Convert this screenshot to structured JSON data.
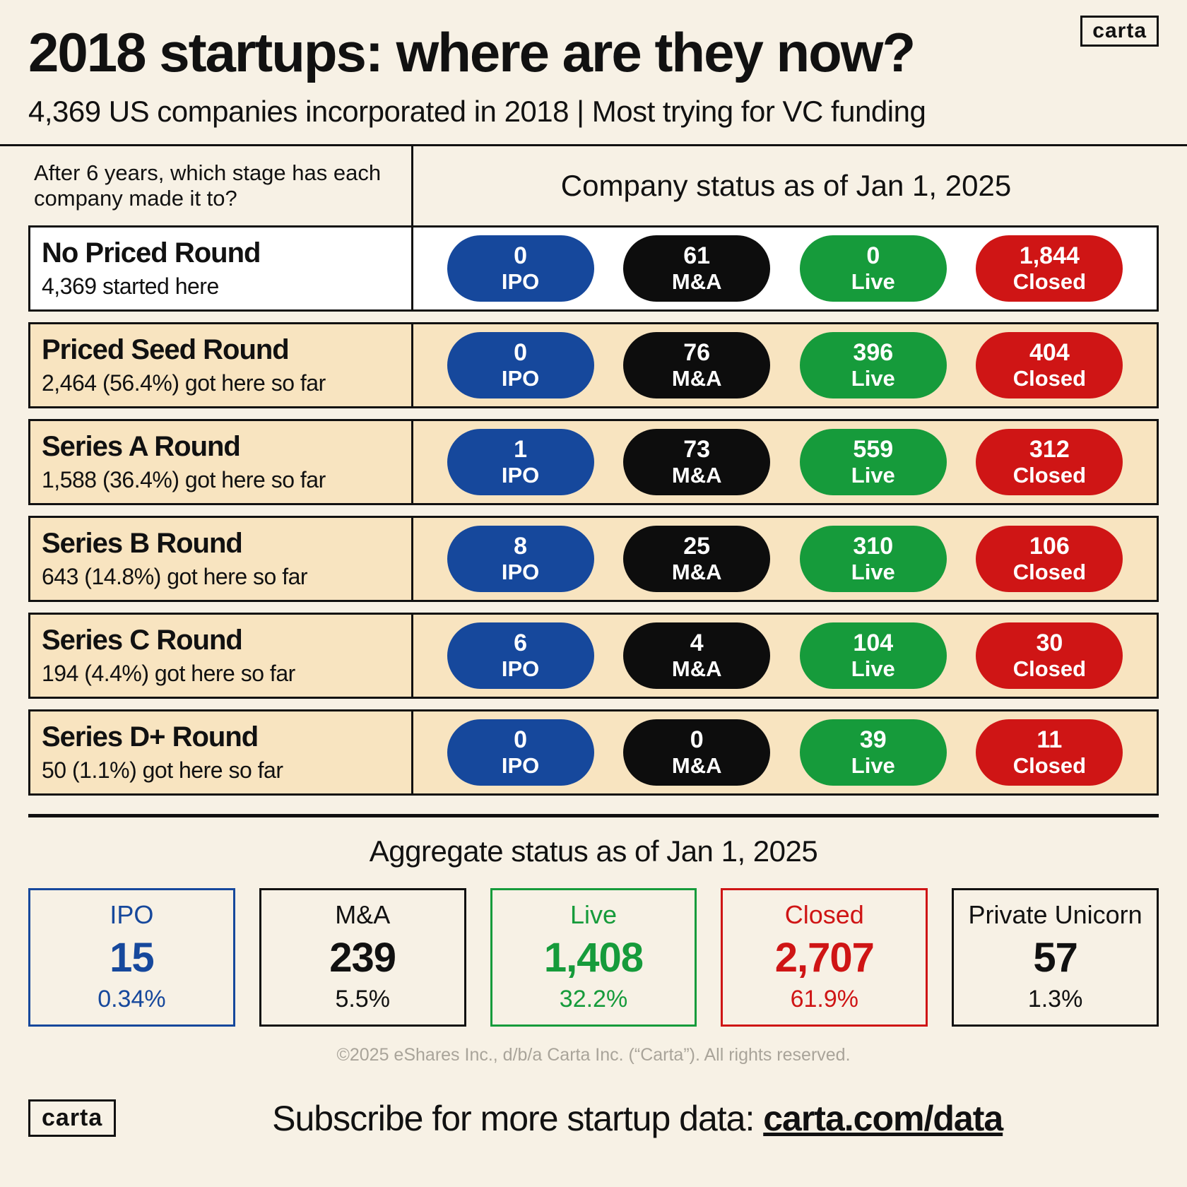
{
  "brand": {
    "logo_top": "carta",
    "logo_bottom": "carta"
  },
  "header": {
    "title": "2018 startups: where are they now?",
    "subtitle": "4,369 US companies incorporated in 2018 | Most trying for VC funding"
  },
  "table": {
    "left_header": "After 6 years, which stage has each company made it to?",
    "right_header": "Company status as of Jan 1, 2025",
    "rows": [
      {
        "title": "No Priced Round",
        "subtitle": "4,369 started here",
        "pills": [
          {
            "value": "0",
            "label": "IPO"
          },
          {
            "value": "61",
            "label": "M&A"
          },
          {
            "value": "0",
            "label": "Live"
          },
          {
            "value": "1,844",
            "label": "Closed"
          }
        ]
      },
      {
        "title": "Priced Seed Round",
        "subtitle": "2,464 (56.4%) got here so far",
        "pills": [
          {
            "value": "0",
            "label": "IPO"
          },
          {
            "value": "76",
            "label": "M&A"
          },
          {
            "value": "396",
            "label": "Live"
          },
          {
            "value": "404",
            "label": "Closed"
          }
        ]
      },
      {
        "title": "Series A Round",
        "subtitle": "1,588 (36.4%) got here so far",
        "pills": [
          {
            "value": "1",
            "label": "IPO"
          },
          {
            "value": "73",
            "label": "M&A"
          },
          {
            "value": "559",
            "label": "Live"
          },
          {
            "value": "312",
            "label": "Closed"
          }
        ]
      },
      {
        "title": "Series B Round",
        "subtitle": "643 (14.8%) got here so far",
        "pills": [
          {
            "value": "8",
            "label": "IPO"
          },
          {
            "value": "25",
            "label": "M&A"
          },
          {
            "value": "310",
            "label": "Live"
          },
          {
            "value": "106",
            "label": "Closed"
          }
        ]
      },
      {
        "title": "Series C Round",
        "subtitle": "194 (4.4%) got here so far",
        "pills": [
          {
            "value": "6",
            "label": "IPO"
          },
          {
            "value": "4",
            "label": "M&A"
          },
          {
            "value": "104",
            "label": "Live"
          },
          {
            "value": "30",
            "label": "Closed"
          }
        ]
      },
      {
        "title": "Series D+ Round",
        "subtitle": "50 (1.1%) got here so far",
        "pills": [
          {
            "value": "0",
            "label": "IPO"
          },
          {
            "value": "0",
            "label": "M&A"
          },
          {
            "value": "39",
            "label": "Live"
          },
          {
            "value": "11",
            "label": "Closed"
          }
        ]
      }
    ]
  },
  "aggregate": {
    "title": "Aggregate status as of Jan 1, 2025",
    "cards": [
      {
        "label": "IPO",
        "value": "15",
        "pct": "0.34%"
      },
      {
        "label": "M&A",
        "value": "239",
        "pct": "5.5%"
      },
      {
        "label": "Live",
        "value": "1,408",
        "pct": "32.2%"
      },
      {
        "label": "Closed",
        "value": "2,707",
        "pct": "61.9%"
      },
      {
        "label": "Private Unicorn",
        "value": "57",
        "pct": "1.3%"
      }
    ]
  },
  "footer": {
    "copyright": "©2025 eShares Inc., d/b/a Carta Inc. (“Carta”). All rights reserved.",
    "subscribe_prefix": "Subscribe for more startup data: ",
    "subscribe_link": "carta.com/data"
  },
  "chart_data": {
    "type": "table",
    "title": "2018 startups: where are they now?",
    "subtitle": "4,369 US companies incorporated in 2018 | Most trying for VC funding",
    "status_as_of": "Jan 1, 2025",
    "columns": [
      "IPO",
      "M&A",
      "Live",
      "Closed"
    ],
    "rows": [
      {
        "stage": "No Priced Round",
        "note": "4,369 started here",
        "IPO": 0,
        "MA": 61,
        "Live": 0,
        "Closed": 1844
      },
      {
        "stage": "Priced Seed Round",
        "note": "2,464 (56.4%) got here so far",
        "IPO": 0,
        "MA": 76,
        "Live": 396,
        "Closed": 404
      },
      {
        "stage": "Series A Round",
        "note": "1,588 (36.4%) got here so far",
        "IPO": 1,
        "MA": 73,
        "Live": 559,
        "Closed": 312
      },
      {
        "stage": "Series B Round",
        "note": "643 (14.8%) got here so far",
        "IPO": 8,
        "MA": 25,
        "Live": 310,
        "Closed": 106
      },
      {
        "stage": "Series C Round",
        "note": "194 (4.4%) got here so far",
        "IPO": 6,
        "MA": 4,
        "Live": 104,
        "Closed": 30
      },
      {
        "stage": "Series D+ Round",
        "note": "50 (1.1%) got here so far",
        "IPO": 0,
        "MA": 0,
        "Live": 39,
        "Closed": 11
      }
    ],
    "aggregate": [
      {
        "label": "IPO",
        "count": 15,
        "pct": 0.34
      },
      {
        "label": "M&A",
        "count": 239,
        "pct": 5.5
      },
      {
        "label": "Live",
        "count": 1408,
        "pct": 32.2
      },
      {
        "label": "Closed",
        "count": 2707,
        "pct": 61.9
      },
      {
        "label": "Private Unicorn",
        "count": 57,
        "pct": 1.3
      }
    ],
    "colors": {
      "IPO": "#16489c",
      "MA": "#0d0d0d",
      "Live": "#169b3b",
      "Closed": "#cf1515",
      "background": "#f7f1e5",
      "row_highlight": "#f8e4c0"
    }
  }
}
